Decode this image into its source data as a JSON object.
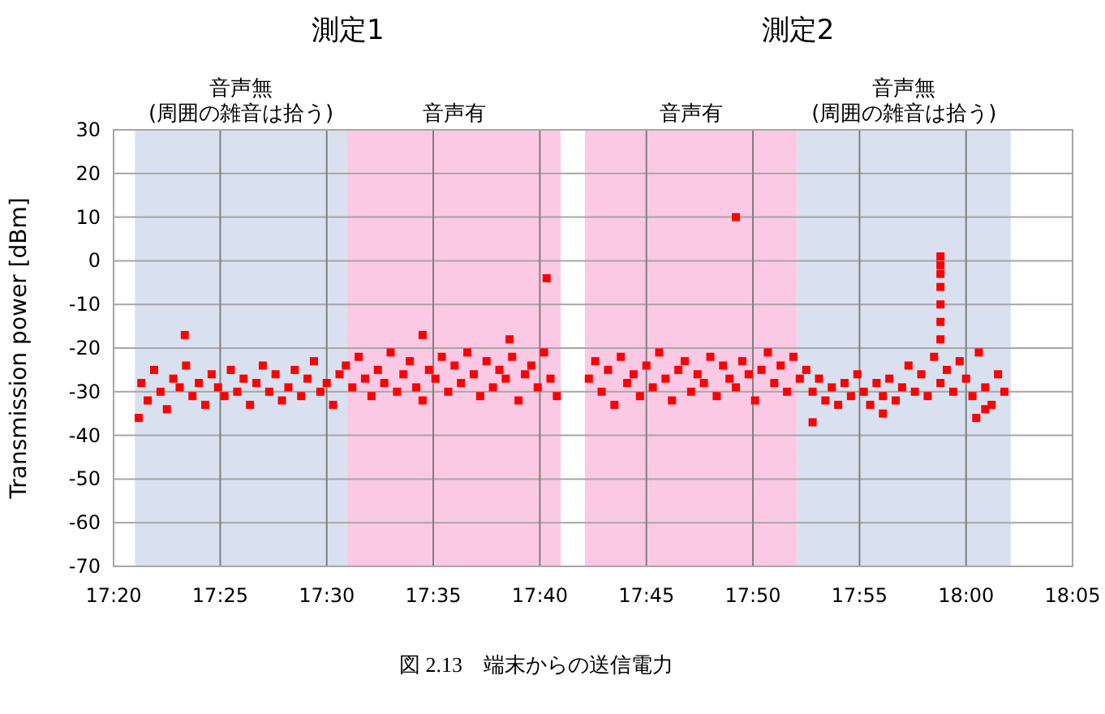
{
  "chart_data": {
    "type": "scatter",
    "ylabel": "Transmission power [dBm]",
    "annotations": [
      "測定1",
      "測定2",
      "図 2.13　端末からの送信電力"
    ],
    "xlim": [
      17.3333,
      18.0833
    ],
    "xticks": [
      {
        "value": 17.3333,
        "label": "17:20"
      },
      {
        "value": 17.4167,
        "label": "17:25"
      },
      {
        "value": 17.5,
        "label": "17:30"
      },
      {
        "value": 17.5833,
        "label": "17:35"
      },
      {
        "value": 17.6667,
        "label": "17:40"
      },
      {
        "value": 17.75,
        "label": "17:45"
      },
      {
        "value": 17.8333,
        "label": "17:50"
      },
      {
        "value": 17.9167,
        "label": "17:55"
      },
      {
        "value": 18.0,
        "label": "18:00"
      },
      {
        "value": 18.0833,
        "label": "18:05"
      }
    ],
    "ylim": [
      -70,
      30
    ],
    "yticks": [
      -70,
      -60,
      -50,
      -40,
      -30,
      -20,
      -10,
      0,
      10,
      20,
      30
    ],
    "grid": true,
    "marker": "square",
    "bands": [
      {
        "axis": "x",
        "from": 17.35,
        "to": 17.516,
        "label": "音声無\n(周囲の雑音は拾う)",
        "color": "#d9e1f0"
      },
      {
        "axis": "x",
        "from": 17.516,
        "to": 17.683,
        "label": "音声有",
        "color": "#fcc9e5"
      },
      {
        "axis": "x",
        "from": 17.702,
        "to": 17.868,
        "label": "音声有",
        "color": "#fcc9e5"
      },
      {
        "axis": "x",
        "from": 17.868,
        "to": 18.035,
        "label": "音声無\n(周囲の雑音は拾う)",
        "color": "#d9e1f0"
      }
    ],
    "series": [
      {
        "color": "#ff0000",
        "x": [
          17.355,
          17.36,
          17.365,
          17.37,
          17.375,
          17.38,
          17.385,
          17.39,
          17.395,
          17.4,
          17.405,
          17.41,
          17.415,
          17.42,
          17.425,
          17.43,
          17.435,
          17.44,
          17.445,
          17.45,
          17.455,
          17.46,
          17.465,
          17.47,
          17.475,
          17.48,
          17.485,
          17.49,
          17.495,
          17.5,
          17.505,
          17.51,
          17.515,
          17.52,
          17.525,
          17.53,
          17.535,
          17.54,
          17.545,
          17.55,
          17.555,
          17.56,
          17.565,
          17.57,
          17.575,
          17.58,
          17.585,
          17.59,
          17.595,
          17.6,
          17.605,
          17.61,
          17.615,
          17.62,
          17.625,
          17.63,
          17.635,
          17.64,
          17.645,
          17.65,
          17.655,
          17.66,
          17.665,
          17.67,
          17.675,
          17.68,
          17.705,
          17.71,
          17.715,
          17.72,
          17.725,
          17.73,
          17.735,
          17.74,
          17.745,
          17.75,
          17.755,
          17.76,
          17.765,
          17.77,
          17.775,
          17.78,
          17.785,
          17.79,
          17.795,
          17.8,
          17.805,
          17.81,
          17.815,
          17.82,
          17.825,
          17.83,
          17.835,
          17.84,
          17.845,
          17.85,
          17.855,
          17.86,
          17.865,
          17.87,
          17.875,
          17.88,
          17.885,
          17.89,
          17.895,
          17.9,
          17.905,
          17.91,
          17.915,
          17.92,
          17.925,
          17.93,
          17.935,
          17.94,
          17.945,
          17.95,
          17.955,
          17.96,
          17.965,
          17.97,
          17.975,
          17.98,
          17.985,
          17.99,
          17.995,
          18.0,
          18.005,
          18.01,
          18.015,
          18.02,
          18.025,
          18.03,
          17.389,
          17.353,
          17.575,
          17.643,
          17.672,
          17.82,
          17.88,
          17.935,
          18.008,
          18.015,
          17.98,
          17.98,
          17.98,
          17.98,
          17.98,
          17.98,
          17.98
        ],
        "values": [
          -28,
          -32,
          -25,
          -30,
          -34,
          -27,
          -29,
          -24,
          -31,
          -28,
          -33,
          -26,
          -29,
          -31,
          -25,
          -30,
          -27,
          -33,
          -28,
          -24,
          -30,
          -26,
          -32,
          -29,
          -25,
          -31,
          -27,
          -23,
          -30,
          -28,
          -33,
          -26,
          -24,
          -29,
          -22,
          -27,
          -31,
          -25,
          -28,
          -21,
          -30,
          -26,
          -23,
          -29,
          -32,
          -25,
          -27,
          -22,
          -30,
          -24,
          -28,
          -21,
          -26,
          -31,
          -23,
          -29,
          -25,
          -27,
          -22,
          -32,
          -26,
          -24,
          -29,
          -21,
          -27,
          -31,
          -27,
          -23,
          -30,
          -25,
          -33,
          -22,
          -28,
          -26,
          -31,
          -24,
          -29,
          -21,
          -27,
          -32,
          -25,
          -23,
          -30,
          -26,
          -28,
          -22,
          -31,
          -24,
          -27,
          -29,
          -23,
          -26,
          -32,
          -25,
          -21,
          -28,
          -24,
          -30,
          -22,
          -27,
          -25,
          -30,
          -27,
          -32,
          -29,
          -33,
          -28,
          -31,
          -26,
          -30,
          -33,
          -28,
          -31,
          -27,
          -32,
          -29,
          -24,
          -30,
          -26,
          -31,
          -22,
          -28,
          -25,
          -30,
          -23,
          -27,
          -31,
          -21,
          -29,
          -33,
          -26,
          -30,
          -17,
          -36,
          -17,
          -18,
          -4,
          10,
          -37,
          -35,
          -36,
          -34,
          1,
          -1,
          -3,
          -6,
          -10,
          -14,
          -18
        ]
      }
    ]
  }
}
